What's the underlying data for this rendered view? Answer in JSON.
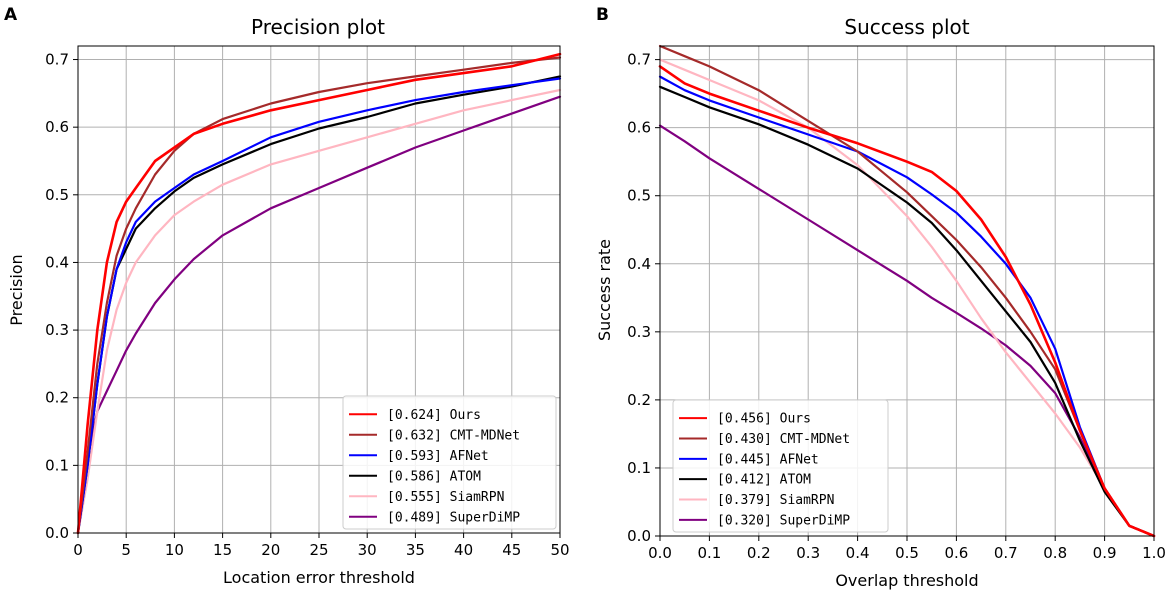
{
  "figure": {
    "left_panel_label": "A",
    "right_panel_label": "B"
  },
  "chart_data": [
    {
      "type": "line",
      "title": "Precision plot",
      "xlabel": "Location error threshold",
      "ylabel": "Precision",
      "xlim": [
        0,
        50
      ],
      "ylim": [
        0,
        0.72
      ],
      "xticks": [
        0,
        5,
        10,
        15,
        20,
        25,
        30,
        35,
        40,
        45,
        50
      ],
      "yticks": [
        0.0,
        0.1,
        0.2,
        0.3,
        0.4,
        0.5,
        0.6,
        0.7
      ],
      "xtick_labels": [
        "0",
        "5",
        "10",
        "15",
        "20",
        "25",
        "30",
        "35",
        "40",
        "45",
        "50"
      ],
      "ytick_labels": [
        "0.0",
        "0.1",
        "0.2",
        "0.3",
        "0.4",
        "0.5",
        "0.6",
        "0.7"
      ],
      "grid": true,
      "legend_position": "lower-right",
      "series": [
        {
          "name": "[0.624] Ours",
          "color": "#ff0000",
          "x": [
            0,
            1,
            2,
            3,
            4,
            5,
            6,
            8,
            10,
            12,
            15,
            20,
            25,
            30,
            35,
            40,
            45,
            50
          ],
          "values": [
            0,
            0.16,
            0.3,
            0.4,
            0.46,
            0.49,
            0.51,
            0.55,
            0.57,
            0.59,
            0.605,
            0.625,
            0.64,
            0.655,
            0.67,
            0.68,
            0.69,
            0.708
          ]
        },
        {
          "name": "[0.632] CMT-MDNet",
          "color": "#a52a2a",
          "x": [
            0,
            1,
            2,
            3,
            4,
            5,
            6,
            8,
            10,
            12,
            15,
            20,
            25,
            30,
            35,
            40,
            45,
            50
          ],
          "values": [
            0,
            0.12,
            0.25,
            0.34,
            0.41,
            0.45,
            0.48,
            0.53,
            0.565,
            0.59,
            0.612,
            0.635,
            0.652,
            0.665,
            0.675,
            0.685,
            0.695,
            0.703
          ]
        },
        {
          "name": "[0.593] AFNet",
          "color": "#0000ff",
          "x": [
            0,
            1,
            2,
            3,
            4,
            5,
            6,
            8,
            10,
            12,
            15,
            20,
            25,
            30,
            35,
            40,
            45,
            50
          ],
          "values": [
            0,
            0.1,
            0.22,
            0.32,
            0.39,
            0.43,
            0.46,
            0.49,
            0.51,
            0.53,
            0.55,
            0.585,
            0.608,
            0.625,
            0.64,
            0.652,
            0.662,
            0.672
          ]
        },
        {
          "name": "[0.586] ATOM",
          "color": "#000000",
          "x": [
            0,
            1,
            2,
            3,
            4,
            5,
            6,
            8,
            10,
            12,
            15,
            20,
            25,
            30,
            35,
            40,
            45,
            50
          ],
          "values": [
            0,
            0.1,
            0.22,
            0.32,
            0.39,
            0.42,
            0.45,
            0.48,
            0.505,
            0.525,
            0.545,
            0.575,
            0.598,
            0.615,
            0.635,
            0.648,
            0.66,
            0.675
          ]
        },
        {
          "name": "[0.555] SiamRPN",
          "color": "#ffb6c1",
          "x": [
            0,
            1,
            2,
            3,
            4,
            5,
            6,
            8,
            10,
            12,
            15,
            20,
            25,
            30,
            35,
            40,
            45,
            50
          ],
          "values": [
            0,
            0.08,
            0.18,
            0.27,
            0.33,
            0.37,
            0.4,
            0.44,
            0.47,
            0.49,
            0.515,
            0.545,
            0.565,
            0.585,
            0.605,
            0.625,
            0.64,
            0.655
          ]
        },
        {
          "name": "[0.489] SuperDiMP",
          "color": "#800080",
          "x": [
            0,
            1,
            2,
            3,
            4,
            5,
            6,
            8,
            10,
            12,
            15,
            20,
            25,
            30,
            35,
            40,
            45,
            50
          ],
          "values": [
            0,
            0.11,
            0.18,
            0.21,
            0.24,
            0.27,
            0.295,
            0.34,
            0.375,
            0.405,
            0.44,
            0.48,
            0.51,
            0.54,
            0.57,
            0.595,
            0.62,
            0.645
          ]
        }
      ]
    },
    {
      "type": "line",
      "title": "Success plot",
      "xlabel": "Overlap threshold",
      "ylabel": "Success rate",
      "xlim": [
        0,
        1
      ],
      "ylim": [
        0,
        0.72
      ],
      "xticks": [
        0.0,
        0.1,
        0.2,
        0.3,
        0.4,
        0.5,
        0.6,
        0.7,
        0.8,
        0.9,
        1.0
      ],
      "yticks": [
        0.0,
        0.1,
        0.2,
        0.3,
        0.4,
        0.5,
        0.6,
        0.7
      ],
      "xtick_labels": [
        "0.0",
        "0.1",
        "0.2",
        "0.3",
        "0.4",
        "0.5",
        "0.6",
        "0.7",
        "0.8",
        "0.9",
        "1.0"
      ],
      "ytick_labels": [
        "0.0",
        "0.1",
        "0.2",
        "0.3",
        "0.4",
        "0.5",
        "0.6",
        "0.7"
      ],
      "grid": true,
      "legend_position": "lower-left",
      "series": [
        {
          "name": "[0.456] Ours",
          "color": "#ff0000",
          "x": [
            0,
            0.05,
            0.1,
            0.2,
            0.3,
            0.4,
            0.5,
            0.55,
            0.6,
            0.65,
            0.7,
            0.75,
            0.8,
            0.85,
            0.9,
            0.95,
            1.0
          ],
          "values": [
            0.69,
            0.665,
            0.65,
            0.625,
            0.6,
            0.577,
            0.55,
            0.535,
            0.507,
            0.465,
            0.41,
            0.34,
            0.255,
            0.155,
            0.07,
            0.015,
            0.0
          ]
        },
        {
          "name": "[0.430] CMT-MDNet",
          "color": "#a52a2a",
          "x": [
            0,
            0.05,
            0.1,
            0.2,
            0.3,
            0.4,
            0.5,
            0.55,
            0.6,
            0.65,
            0.7,
            0.75,
            0.8,
            0.85,
            0.9,
            0.95,
            1.0
          ],
          "values": [
            0.72,
            0.705,
            0.69,
            0.655,
            0.61,
            0.565,
            0.505,
            0.47,
            0.435,
            0.395,
            0.35,
            0.3,
            0.245,
            0.155,
            0.07,
            0.015,
            0.0
          ]
        },
        {
          "name": "[0.445] AFNet",
          "color": "#0000ff",
          "x": [
            0,
            0.05,
            0.1,
            0.2,
            0.3,
            0.4,
            0.5,
            0.55,
            0.6,
            0.65,
            0.7,
            0.75,
            0.8,
            0.85,
            0.9,
            0.95,
            1.0
          ],
          "values": [
            0.675,
            0.655,
            0.64,
            0.615,
            0.59,
            0.565,
            0.527,
            0.502,
            0.475,
            0.44,
            0.4,
            0.35,
            0.275,
            0.16,
            0.07,
            0.015,
            0.0
          ]
        },
        {
          "name": "[0.412] ATOM",
          "color": "#000000",
          "x": [
            0,
            0.05,
            0.1,
            0.2,
            0.3,
            0.4,
            0.5,
            0.55,
            0.6,
            0.65,
            0.7,
            0.75,
            0.8,
            0.85,
            0.9,
            0.95,
            1.0
          ],
          "values": [
            0.66,
            0.645,
            0.63,
            0.605,
            0.575,
            0.54,
            0.49,
            0.46,
            0.42,
            0.375,
            0.33,
            0.285,
            0.225,
            0.14,
            0.065,
            0.015,
            0.0
          ]
        },
        {
          "name": "[0.379] SiamRPN",
          "color": "#ffb6c1",
          "x": [
            0,
            0.05,
            0.1,
            0.2,
            0.3,
            0.4,
            0.5,
            0.55,
            0.6,
            0.65,
            0.7,
            0.75,
            0.8,
            0.85,
            0.9,
            0.95,
            1.0
          ],
          "values": [
            0.7,
            0.685,
            0.67,
            0.64,
            0.6,
            0.545,
            0.47,
            0.425,
            0.375,
            0.32,
            0.27,
            0.225,
            0.18,
            0.13,
            0.07,
            0.015,
            0.0
          ]
        },
        {
          "name": "[0.320] SuperDiMP",
          "color": "#800080",
          "x": [
            0,
            0.05,
            0.1,
            0.2,
            0.3,
            0.4,
            0.5,
            0.55,
            0.6,
            0.65,
            0.7,
            0.75,
            0.8,
            0.85,
            0.9,
            0.95,
            1.0
          ],
          "values": [
            0.603,
            0.58,
            0.555,
            0.51,
            0.465,
            0.42,
            0.375,
            0.35,
            0.328,
            0.305,
            0.28,
            0.25,
            0.21,
            0.145,
            0.07,
            0.015,
            0.0
          ]
        }
      ]
    }
  ]
}
